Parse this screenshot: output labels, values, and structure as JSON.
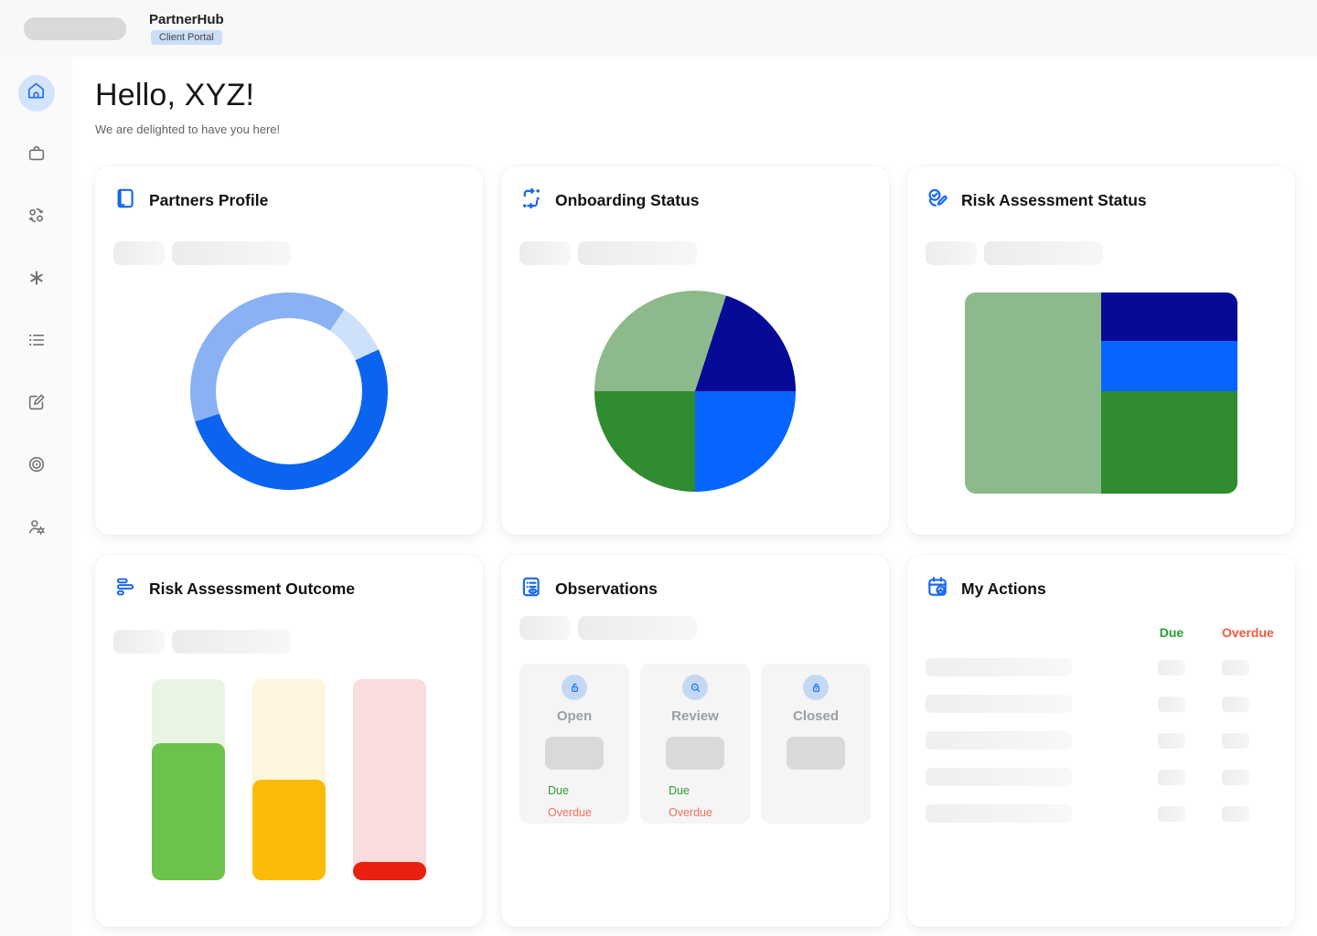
{
  "header": {
    "app_title": "PartnerHub",
    "badge": "Client Portal"
  },
  "greeting": {
    "title": "Hello, XYZ!",
    "subtitle": "We are delighted to have you here!"
  },
  "sidebar": {
    "items": [
      {
        "name": "home",
        "active": true
      },
      {
        "name": "briefcase",
        "active": false
      },
      {
        "name": "partners-exchange",
        "active": false
      },
      {
        "name": "asterisk",
        "active": false
      },
      {
        "name": "list",
        "active": false
      },
      {
        "name": "edit",
        "active": false
      },
      {
        "name": "target",
        "active": false
      },
      {
        "name": "user-settings",
        "active": false
      }
    ]
  },
  "cards": {
    "partners_profile": {
      "title": "Partners Profile",
      "icon": "address-book-icon"
    },
    "onboarding_status": {
      "title": "Onboarding Status",
      "icon": "workflow-icon"
    },
    "risk_assessment_status": {
      "title": "Risk Assessment Status",
      "icon": "check-edit-icon"
    },
    "risk_assessment_outcome": {
      "title": "Risk Assessment Outcome",
      "icon": "bars-icon"
    },
    "observations": {
      "title": "Observations",
      "icon": "list-eye-icon"
    },
    "my_actions": {
      "title": "My Actions",
      "icon": "calendar-user-icon"
    }
  },
  "observations": {
    "tiles": [
      {
        "label": "Open",
        "icon": "lock-open-icon",
        "due_label": "Due",
        "overdue_label": "Overdue"
      },
      {
        "label": "Review",
        "icon": "search-eye-icon",
        "due_label": "Due",
        "overdue_label": "Overdue"
      },
      {
        "label": "Closed",
        "icon": "lock-closed-icon"
      }
    ]
  },
  "my_actions": {
    "columns": {
      "due": "Due",
      "overdue": "Overdue"
    },
    "skeleton_rows": 5
  },
  "colors": {
    "accent_blue": "#1667f2",
    "active_nav_bg": "#d3e3fb",
    "badge_bg": "#cbdef7",
    "due_green": "#23a231",
    "overdue_red": "#f4593f",
    "tile_due_green": "#2e9e33",
    "tile_overdue_coral": "#f4705c"
  },
  "chart_data": [
    {
      "id": "partners_profile_donut",
      "type": "pie",
      "subtype": "donut",
      "title": "Partners Profile",
      "legend": false,
      "segments": [
        {
          "name": "primary-blue",
          "color": "#0a64f0",
          "percent": 52
        },
        {
          "name": "medium-blue",
          "color": "#8ab1f3",
          "percent": 39
        },
        {
          "name": "pale-blue",
          "color": "#cde1fb",
          "percent": 9
        }
      ],
      "stops_deg": [
        [
          "#8ab1f3",
          0,
          34
        ],
        [
          "#cde1fb",
          34,
          65
        ],
        [
          "#0a64f0",
          65,
          252
        ],
        [
          "#8ab1f3",
          252,
          360
        ]
      ]
    },
    {
      "id": "onboarding_status_pie",
      "type": "pie",
      "title": "Onboarding Status",
      "legend": false,
      "segments": [
        {
          "name": "sage-green",
          "color": "#8cba8c",
          "percent": 30
        },
        {
          "name": "navy",
          "color": "#060a96",
          "percent": 20
        },
        {
          "name": "bright-blue",
          "color": "#0765ff",
          "percent": 25
        },
        {
          "name": "dark-green",
          "color": "#2f8c30",
          "percent": 25
        }
      ],
      "stops_deg": [
        [
          "#8cba8c",
          0,
          18
        ],
        [
          "#060a96",
          18,
          90
        ],
        [
          "#0765ff",
          90,
          180
        ],
        [
          "#2f8c30",
          180,
          270
        ],
        [
          "#8cba8c",
          270,
          360
        ]
      ]
    },
    {
      "id": "risk_status_treemap",
      "type": "heatmap",
      "subtype": "treemap",
      "title": "Risk Assessment Status",
      "left_block": {
        "name": "sage-green",
        "color": "#8cba8c",
        "width_percent": 50
      },
      "right_blocks": [
        {
          "name": "navy",
          "color": "#060a96",
          "height_percent": 24
        },
        {
          "name": "bright-blue",
          "color": "#0765ff",
          "height_percent": 25
        },
        {
          "name": "dark-green",
          "color": "#2f8c30",
          "height_percent": 51
        }
      ]
    },
    {
      "id": "risk_outcome_bars",
      "type": "bar",
      "title": "Risk Assessment Outcome",
      "bars": [
        {
          "name": "low",
          "track_color": "#e9f4e2",
          "fill_color": "#6cc24a",
          "fill_percent": 68
        },
        {
          "name": "medium",
          "track_color": "#fdf5dd",
          "fill_color": "#fcba0b",
          "fill_percent": 50
        },
        {
          "name": "high",
          "track_color": "#f9dcdc",
          "fill_color": "#e9200f",
          "fill_percent": 9
        }
      ]
    }
  ]
}
